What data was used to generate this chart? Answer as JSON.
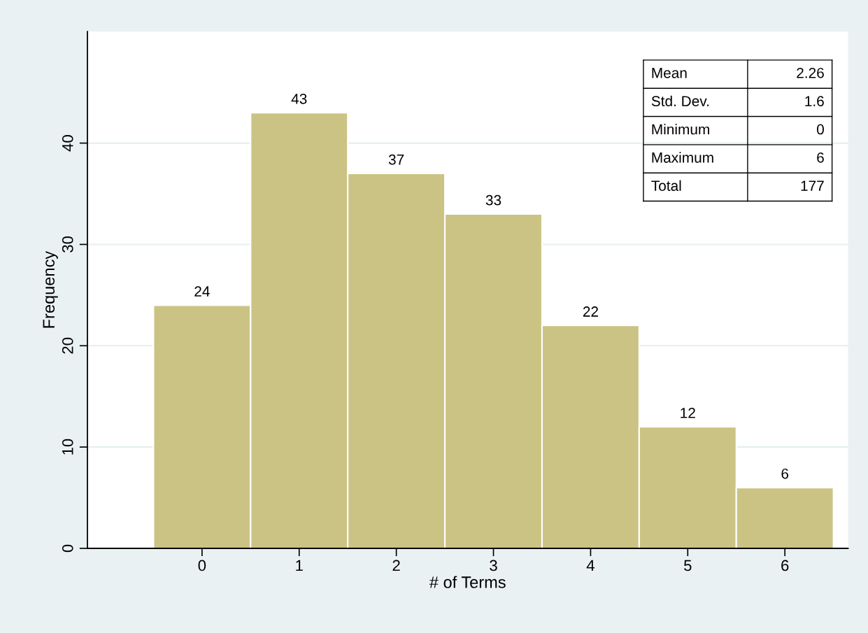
{
  "chart_data": {
    "type": "histogram",
    "xlabel": "# of Terms",
    "ylabel": "Frequency",
    "bins": [
      -0.5,
      0.5,
      1.5,
      2.5,
      3.5,
      4.5,
      5.5,
      6.5
    ],
    "values": [
      24,
      43,
      37,
      33,
      22,
      12,
      6
    ],
    "color": "#cbc383",
    "xlim": [
      -1.18,
      6.65
    ],
    "xticks": [
      0,
      1,
      2,
      3,
      4,
      5,
      6
    ],
    "ylim": [
      0,
      51
    ],
    "yticks": [
      0,
      10,
      20,
      30,
      40
    ],
    "grid": "y",
    "data_labels": true,
    "annotations": [
      "Mean",
      "2.26",
      "Std. Dev.",
      "1.6",
      "Minimum",
      "0",
      "Maximum",
      "6",
      "Total",
      "177"
    ]
  }
}
